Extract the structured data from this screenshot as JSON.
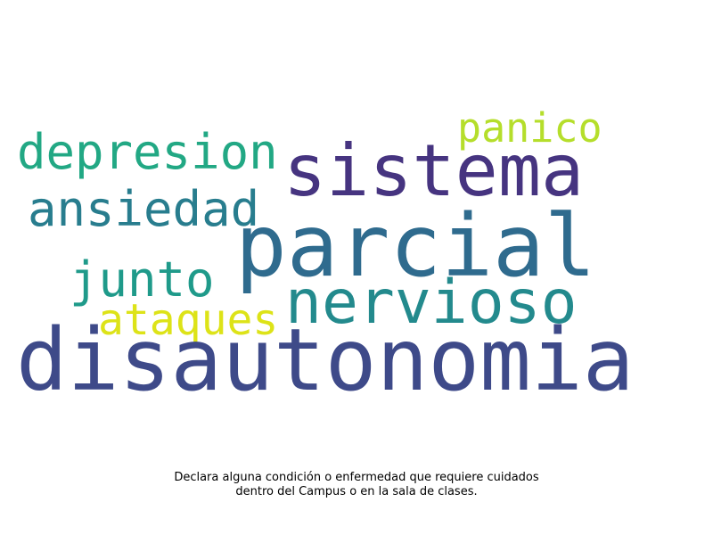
{
  "cloud": {
    "words": {
      "disautonomia": {
        "text": "disautonomia",
        "color": "#3e4a89"
      },
      "parcial": {
        "text": "parcial",
        "color": "#2f6b8e"
      },
      "sistema": {
        "text": "sistema",
        "color": "#463480"
      },
      "nervioso": {
        "text": "nervioso",
        "color": "#238a8d"
      },
      "depresion": {
        "text": "depresion",
        "color": "#22a884"
      },
      "ansiedad": {
        "text": "ansiedad",
        "color": "#287d8e"
      },
      "junto": {
        "text": "junto",
        "color": "#1f9a8a"
      },
      "ataques": {
        "text": "ataques",
        "color": "#dde318"
      },
      "panico": {
        "text": "panico",
        "color": "#b5de2b"
      }
    }
  },
  "caption": {
    "line1": "Declara alguna condición o enfermedad que requiere cuidados",
    "line2": "dentro del Campus o en la sala de clases."
  }
}
